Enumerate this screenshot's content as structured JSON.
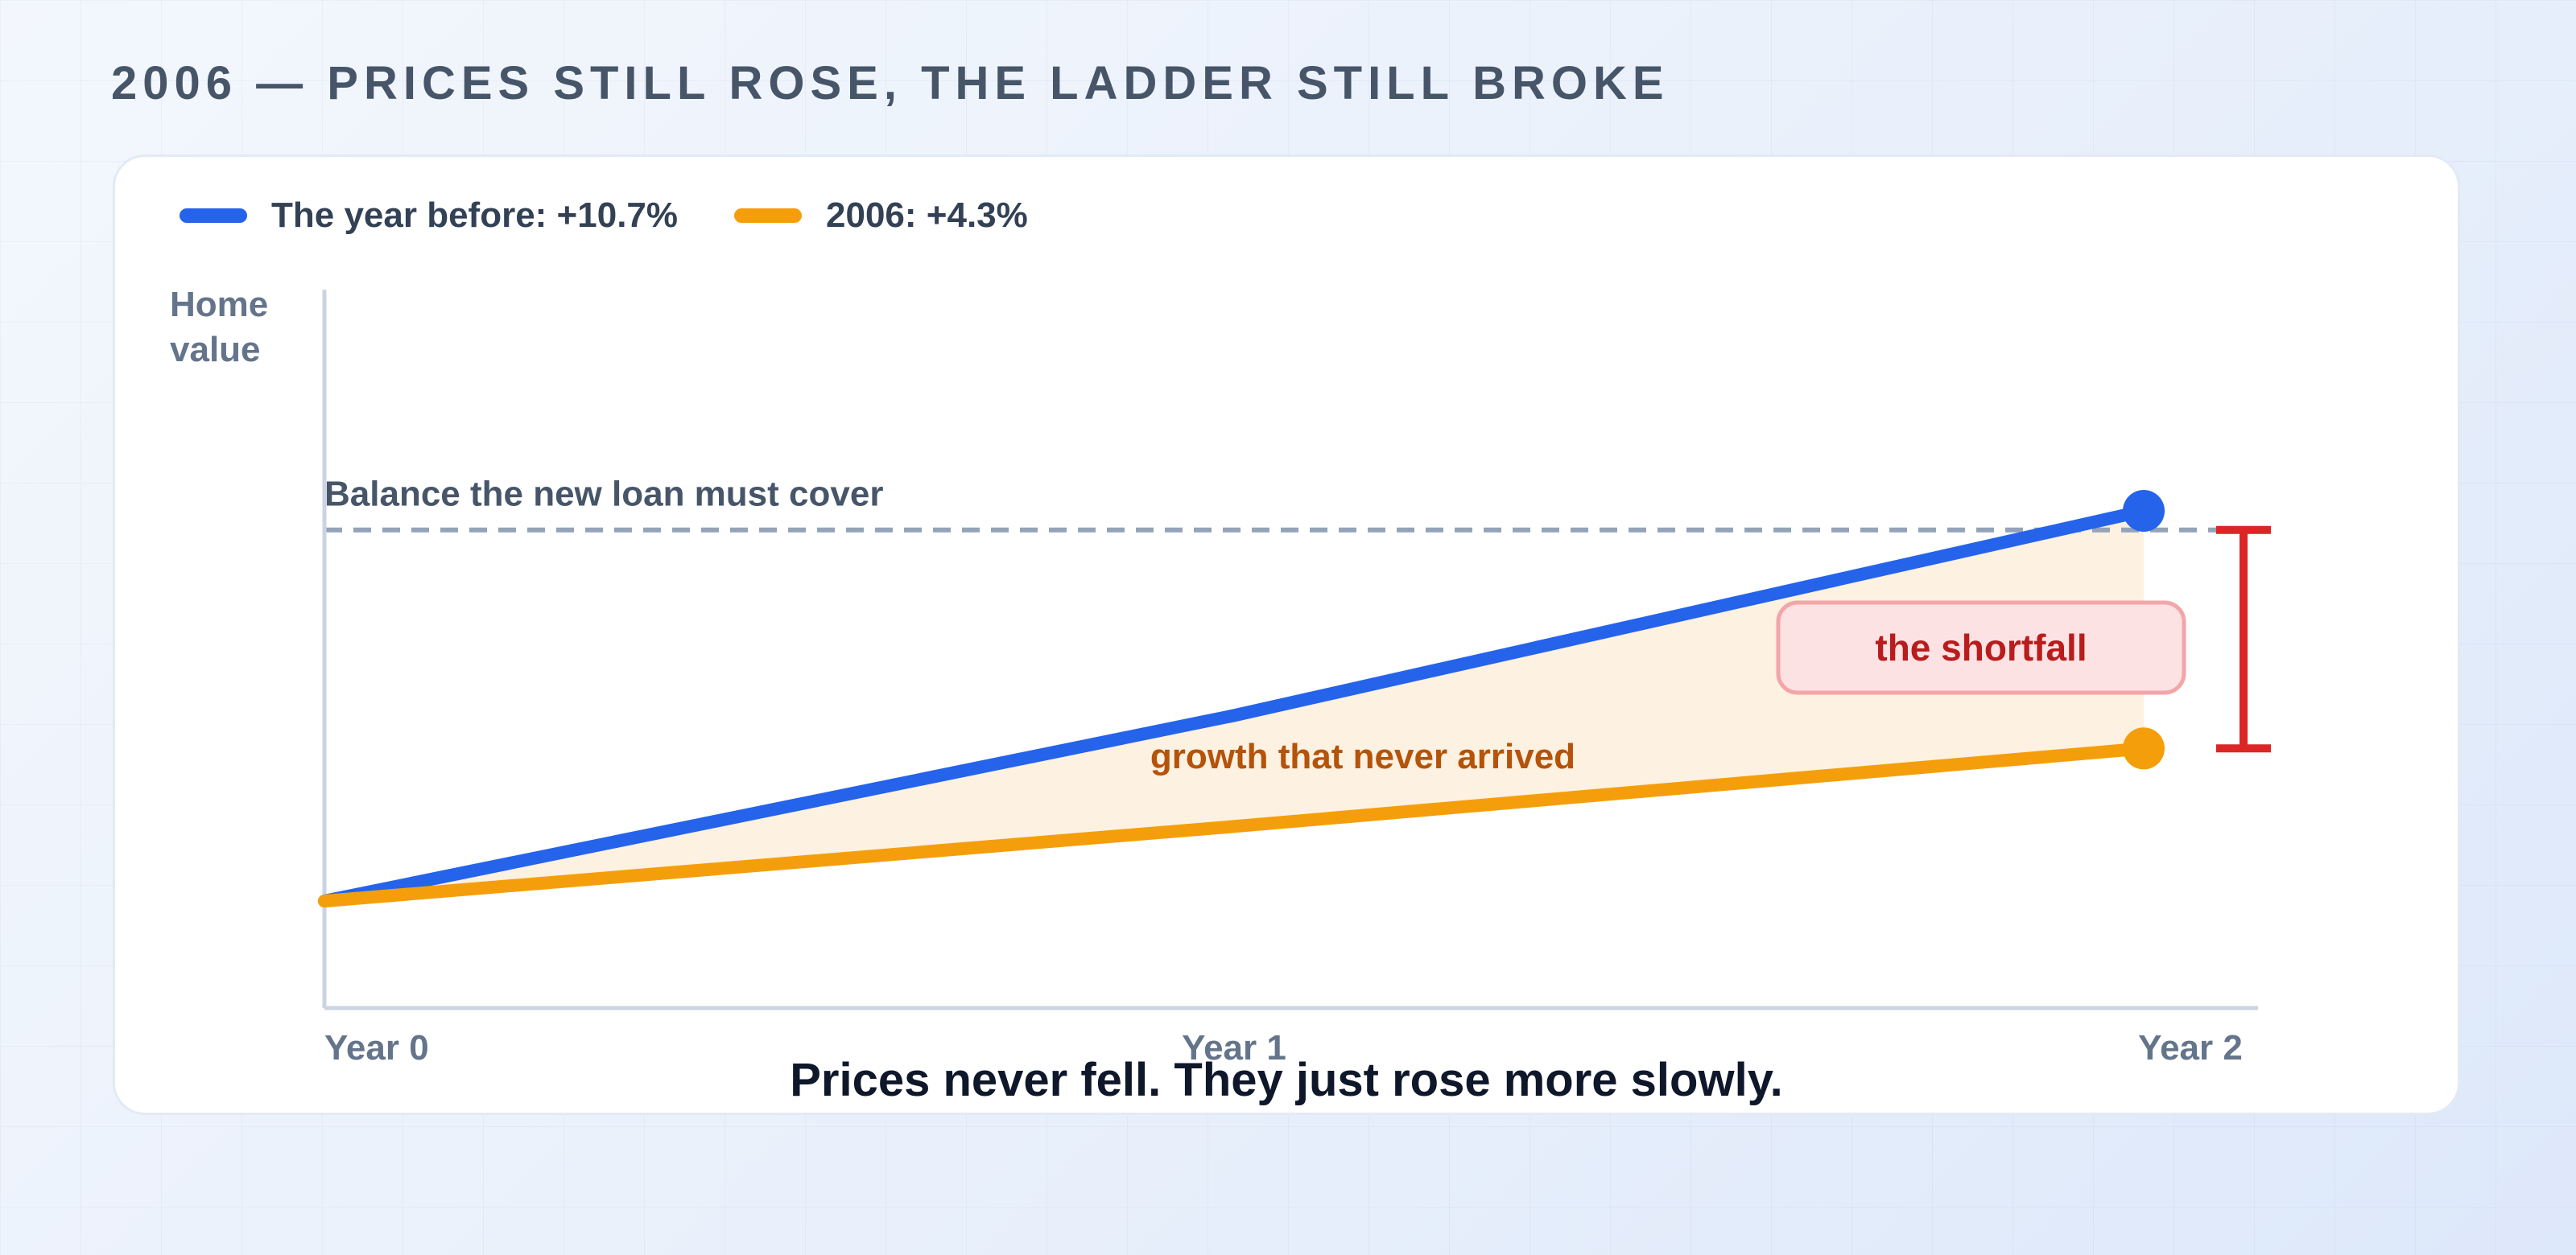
{
  "page_title": "2006 — PRICES STILL ROSE, THE LADDER STILL BROKE",
  "subtitle": "Prices never fell. They just rose more slowly.",
  "colors": {
    "before": "#2563eb",
    "y2006": "#f59e0b",
    "shortfall": "#dc2626",
    "gap_fill": "#fdf1e1",
    "dashed": "#94a3b8"
  },
  "chart_data": {
    "type": "line",
    "categories": [
      "Year 0",
      "Year 1",
      "Year 2"
    ],
    "ylabel": "Home value",
    "series": [
      {
        "name": "The year before: +10.7%",
        "color": "#2563eb",
        "values": [
          100,
          110.7,
          122.5
        ]
      },
      {
        "name": "2006: +4.3%",
        "color": "#f59e0b",
        "values": [
          100,
          104.3,
          108.8
        ]
      }
    ],
    "reference_line": {
      "label": "Balance the new loan must cover",
      "value": 121.4
    },
    "ylim": [
      94,
      150
    ],
    "annotations": {
      "gap_label": "growth that never arrived",
      "shortfall_label": "the shortfall"
    },
    "legend_position": "top-left",
    "grid": false
  }
}
